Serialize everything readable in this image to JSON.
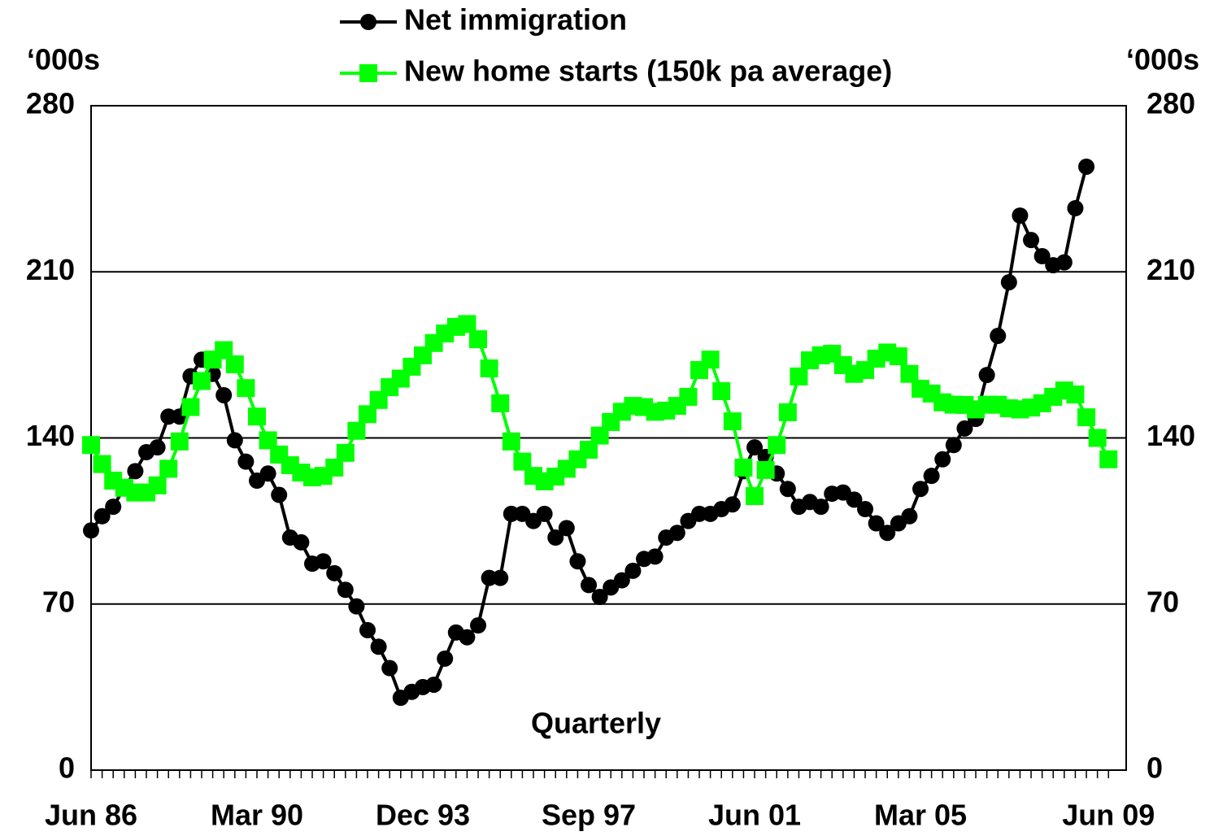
{
  "chart_data": {
    "type": "line",
    "ylabel": "‘000s",
    "y2label": "‘000s",
    "annotation": "Quarterly",
    "categories": [
      "Jun 86",
      null,
      null,
      null,
      null,
      null,
      null,
      null,
      null,
      null,
      null,
      null,
      null,
      null,
      null,
      "Mar 90",
      null,
      null,
      null,
      null,
      null,
      null,
      null,
      null,
      null,
      null,
      null,
      null,
      null,
      null,
      "Dec 93",
      null,
      null,
      null,
      null,
      null,
      null,
      null,
      null,
      null,
      null,
      null,
      null,
      null,
      null,
      "Sep 97",
      null,
      null,
      null,
      null,
      null,
      null,
      null,
      null,
      null,
      null,
      null,
      null,
      null,
      null,
      "Jun 01",
      null,
      null,
      null,
      null,
      null,
      null,
      null,
      null,
      null,
      null,
      null,
      null,
      null,
      null,
      "Mar 05",
      null,
      null,
      null,
      null,
      null,
      null,
      null,
      null,
      null,
      null,
      null,
      null,
      null,
      null,
      null,
      null,
      "Jun 09"
    ],
    "series": [
      {
        "name": "Net immigration",
        "color": "#000000",
        "marker": "circle",
        "values": [
          101,
          107,
          111,
          119,
          126,
          134,
          136,
          149,
          149,
          166,
          173,
          167,
          158,
          139,
          130,
          122,
          125,
          116,
          98,
          96,
          87,
          88,
          83,
          76,
          69,
          59,
          52,
          43,
          30.5,
          33,
          35,
          36,
          47,
          58,
          56,
          61,
          81,
          81,
          108,
          108,
          105,
          108,
          98,
          102,
          88,
          78,
          73,
          77,
          80,
          84,
          89,
          90,
          98,
          100,
          105,
          108,
          108,
          110,
          112,
          126,
          136,
          132,
          125,
          118.5,
          111,
          113,
          111,
          116.5,
          117,
          114,
          110,
          104,
          100,
          104,
          107,
          118.5,
          124,
          131,
          137,
          144,
          148,
          166.5,
          183,
          205.6,
          233.7,
          223.4,
          216.6,
          212.8,
          214,
          236.8,
          254.3,
          null,
          null
        ]
      },
      {
        "name": "New home starts (150k pa average)",
        "color": "#00ff00",
        "marker": "square",
        "values": [
          137,
          129,
          122,
          119,
          117,
          117,
          120,
          127,
          138.5,
          153,
          164,
          173,
          177,
          171,
          161,
          149,
          139,
          133,
          128.5,
          125.4,
          123.4,
          124,
          127.5,
          133.7,
          143,
          150,
          156,
          161.4,
          165,
          170,
          174.8,
          180,
          184,
          186.8,
          188,
          181.6,
          169.3,
          154.6,
          138.5,
          130,
          124,
          121.7,
          123.7,
          127,
          131,
          135,
          141,
          146.7,
          151,
          153.5,
          153,
          151,
          151.5,
          153.5,
          157.3,
          168.6,
          173,
          159.7,
          147,
          127.5,
          115.5,
          126.5,
          137,
          150.8,
          165.9,
          172.7,
          174.8,
          175.5,
          170.7,
          167,
          168.6,
          173.4,
          176,
          174.4,
          167,
          160.7,
          158.7,
          155,
          154,
          153.9,
          152,
          154,
          154,
          152.5,
          152,
          152.8,
          154.6,
          157.3,
          160,
          158.3,
          148.7,
          140,
          131
        ]
      }
    ],
    "ylim": [
      0,
      280
    ],
    "yticks": [
      0,
      70,
      140,
      210,
      280
    ],
    "y2lim": [
      0,
      280
    ],
    "y2ticks": [
      0,
      70,
      140,
      210,
      280
    ],
    "grid": true
  }
}
